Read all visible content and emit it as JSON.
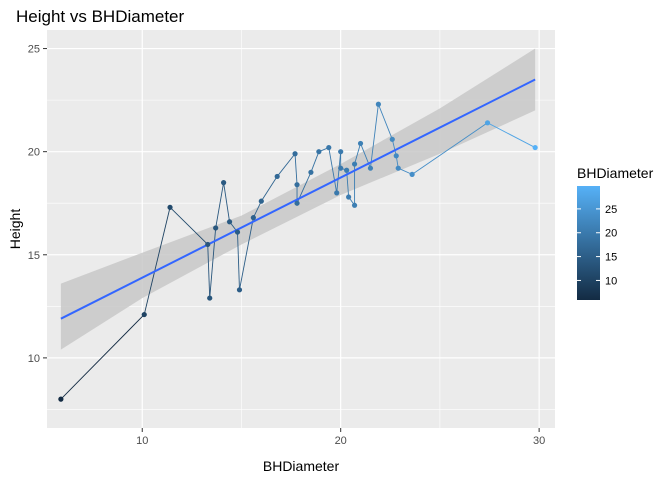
{
  "chart_data": {
    "type": "scatter",
    "title": "Height vs BHDiameter",
    "xlabel": "BHDiameter",
    "ylabel": "Height",
    "xlim": [
      5.2,
      30.8
    ],
    "ylim": [
      6.6,
      25.9
    ],
    "x_ticks": [
      10,
      20,
      30
    ],
    "x_tick_labels": [
      "10",
      "20",
      "30"
    ],
    "y_ticks": [
      10,
      15,
      20,
      25
    ],
    "y_tick_labels": [
      "10",
      "15",
      "20",
      "25"
    ],
    "grid": true,
    "colors": {
      "panel": "#ebebeb",
      "grid": "#ffffff",
      "regression_line": "#3366ff",
      "confidence_band": "#c8c8c8",
      "gradient_low": "#132b43",
      "gradient_high": "#56b1f7"
    },
    "points": [
      {
        "x": 5.9,
        "y": 8.0
      },
      {
        "x": 10.1,
        "y": 12.1
      },
      {
        "x": 11.4,
        "y": 17.3
      },
      {
        "x": 13.3,
        "y": 15.5
      },
      {
        "x": 13.4,
        "y": 12.9
      },
      {
        "x": 13.7,
        "y": 16.3
      },
      {
        "x": 14.1,
        "y": 18.5
      },
      {
        "x": 14.4,
        "y": 16.6
      },
      {
        "x": 14.8,
        "y": 16.1
      },
      {
        "x": 14.9,
        "y": 13.3
      },
      {
        "x": 15.6,
        "y": 16.8
      },
      {
        "x": 16.0,
        "y": 17.6
      },
      {
        "x": 16.8,
        "y": 18.8
      },
      {
        "x": 17.7,
        "y": 19.9
      },
      {
        "x": 17.8,
        "y": 18.4
      },
      {
        "x": 17.8,
        "y": 17.5
      },
      {
        "x": 18.5,
        "y": 19.0
      },
      {
        "x": 18.9,
        "y": 20.0
      },
      {
        "x": 19.4,
        "y": 20.2
      },
      {
        "x": 19.8,
        "y": 18.0
      },
      {
        "x": 20.0,
        "y": 20.0
      },
      {
        "x": 20.0,
        "y": 19.2
      },
      {
        "x": 20.3,
        "y": 19.1
      },
      {
        "x": 20.4,
        "y": 17.8
      },
      {
        "x": 20.7,
        "y": 17.4
      },
      {
        "x": 20.7,
        "y": 19.4
      },
      {
        "x": 21.0,
        "y": 20.4
      },
      {
        "x": 21.5,
        "y": 19.2
      },
      {
        "x": 21.9,
        "y": 22.3
      },
      {
        "x": 22.6,
        "y": 20.6
      },
      {
        "x": 22.8,
        "y": 19.8
      },
      {
        "x": 22.9,
        "y": 19.2
      },
      {
        "x": 23.6,
        "y": 18.9
      },
      {
        "x": 27.4,
        "y": 21.4
      },
      {
        "x": 29.8,
        "y": 20.2
      }
    ],
    "regression": {
      "x": [
        5.9,
        29.8
      ],
      "y": [
        11.9,
        23.5
      ]
    },
    "confidence_band": {
      "x": [
        5.9,
        10,
        15,
        20,
        25,
        29.8
      ],
      "lower": [
        10.4,
        12.9,
        15.5,
        17.9,
        19.9,
        22.0
      ],
      "upper": [
        13.6,
        15.1,
        16.9,
        19.4,
        22.1,
        25.0
      ]
    },
    "legend": {
      "title": "BHDiameter",
      "placement": "right",
      "min": 5.9,
      "max": 29.8,
      "tick_values": [
        10,
        15,
        20,
        25
      ],
      "tick_labels": [
        "10",
        "15",
        "20",
        "25"
      ]
    }
  }
}
